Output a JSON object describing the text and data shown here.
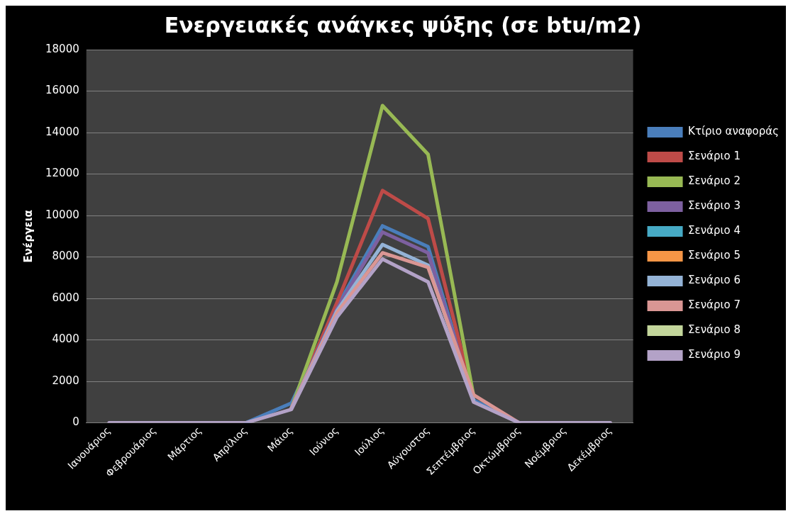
{
  "chart_data": {
    "type": "line",
    "title": "Ενεργειακές ανάγκες ψύξης (σε btu/m2)",
    "ylabel": "Ενέργεια",
    "categories": [
      "Ιανουάριος",
      "Φεβρουάριος",
      "Μάρτιος",
      "Απρίλιος",
      "Μάιος",
      "Ιούνιος",
      "Ιούλιος",
      "Αύγουστος",
      "Σεπτέμβριος",
      "Οκτώμβριος",
      "Νοέμβριος",
      "Δεκέμβριος"
    ],
    "ylim": [
      0,
      18000
    ],
    "yticks": [
      0,
      2000,
      4000,
      6000,
      8000,
      10000,
      12000,
      14000,
      16000,
      18000
    ],
    "grid": "y",
    "legend": "right",
    "marker": "none",
    "line_style": "solid",
    "series": [
      {
        "name": "Κτίριο αναφοράς",
        "color": "#4a7ebb",
        "values": [
          null,
          null,
          null,
          0,
          950,
          5600,
          9500,
          8500,
          1100,
          0,
          null,
          null
        ]
      },
      {
        "name": "Σενάριο 1",
        "color": "#be4b48",
        "values": [
          null,
          null,
          null,
          null,
          700,
          5800,
          11200,
          9850,
          1200,
          null,
          null,
          null
        ]
      },
      {
        "name": "Σενάριο 2",
        "color": "#98b954",
        "values": [
          null,
          null,
          null,
          null,
          700,
          6800,
          15300,
          12950,
          1300,
          null,
          null,
          null
        ]
      },
      {
        "name": "Σενάριο 3",
        "color": "#7d60a0",
        "values": [
          null,
          null,
          null,
          null,
          700,
          5500,
          9200,
          8200,
          1100,
          null,
          null,
          null
        ]
      },
      {
        "name": "Σενάριο 4",
        "color": "#46aac5",
        "values": [
          null,
          null,
          null,
          null,
          null,
          null,
          null,
          null,
          null,
          null,
          null,
          null
        ]
      },
      {
        "name": "Σενάριο 5",
        "color": "#f79646",
        "values": [
          null,
          null,
          null,
          null,
          null,
          null,
          null,
          null,
          null,
          null,
          null,
          null
        ]
      },
      {
        "name": "Σενάριο 6",
        "color": "#94b3d6",
        "values": [
          null,
          null,
          null,
          null,
          700,
          5400,
          8600,
          7600,
          1100,
          null,
          null,
          null
        ]
      },
      {
        "name": "Σενάριο 7",
        "color": "#da9694",
        "values": [
          null,
          null,
          null,
          null,
          700,
          5300,
          8200,
          7500,
          1350,
          0,
          null,
          null
        ]
      },
      {
        "name": "Σενάριο 8",
        "color": "#c3d69b",
        "values": [
          null,
          null,
          null,
          null,
          null,
          null,
          null,
          null,
          null,
          null,
          null,
          null
        ]
      },
      {
        "name": "Σενάριο 9",
        "color": "#b3a2c7",
        "values": [
          0,
          0,
          0,
          0,
          650,
          5100,
          7900,
          6800,
          1000,
          0,
          0,
          0
        ]
      }
    ]
  }
}
